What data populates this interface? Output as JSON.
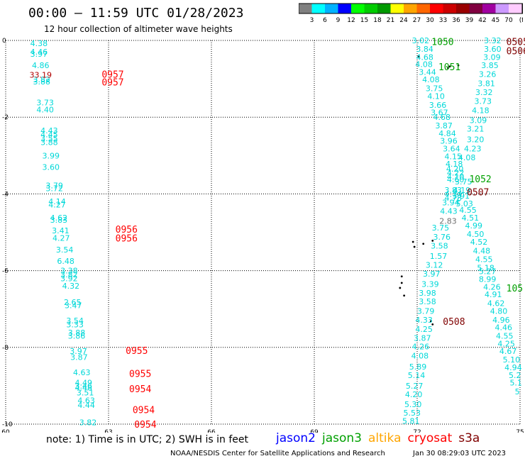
{
  "header": {
    "title": "00:00 – 11:59 UTC 01/28/2023",
    "subtitle": "12 hour collection of altimeter wave heights"
  },
  "colorbar": {
    "colors": [
      "#808080",
      "#00ffff",
      "#00b2ff",
      "#0000ff",
      "#00ff00",
      "#00cc00",
      "#009900",
      "#ffff00",
      "#ffa500",
      "#ff6600",
      "#ff0000",
      "#cc0000",
      "#990000",
      "#800040",
      "#a000a0",
      "#cc99ff",
      "#ffccff",
      "#000000"
    ],
    "labels": [
      "3",
      "6",
      "9",
      "12",
      "15",
      "18",
      "21",
      "24",
      "27",
      "30",
      "33",
      "36",
      "39",
      "42",
      "45",
      "70",
      "(ft)"
    ]
  },
  "axes": {
    "x_ticks": [
      "60",
      "63",
      "66",
      "69",
      "72",
      "75"
    ],
    "y_ticks": [
      "0",
      "-2",
      "-4",
      "-6",
      "-8",
      "-10"
    ]
  },
  "tracks": [
    {
      "color": "#00d8d8",
      "points": [
        {
          "x": 60.97,
          "y": -0.07,
          "v": "4.38"
        },
        {
          "x": 60.97,
          "y": -0.3,
          "v": "4.46"
        },
        {
          "x": 60.97,
          "y": -0.35,
          "v": "3.97"
        },
        {
          "x": 61.02,
          "y": -0.65,
          "v": "4.86"
        },
        {
          "x": 61.05,
          "y": -1.02,
          "v": "3.82"
        },
        {
          "x": 61.05,
          "y": -1.07,
          "v": "3.88"
        },
        {
          "x": 61.15,
          "y": -1.62,
          "v": "3.73"
        },
        {
          "x": 61.15,
          "y": -1.8,
          "v": "4.40"
        },
        {
          "x": 61.27,
          "y": -2.35,
          "v": "4.43"
        },
        {
          "x": 61.27,
          "y": -2.45,
          "v": "4.45"
        },
        {
          "x": 61.27,
          "y": -2.55,
          "v": "3.55"
        },
        {
          "x": 61.27,
          "y": -2.65,
          "v": "3.88"
        },
        {
          "x": 61.32,
          "y": -3.0,
          "v": "3.99"
        },
        {
          "x": 61.32,
          "y": -3.3,
          "v": "3.60"
        },
        {
          "x": 61.42,
          "y": -3.78,
          "v": "3.79"
        },
        {
          "x": 61.42,
          "y": -3.85,
          "v": "3.72"
        },
        {
          "x": 61.5,
          "y": -4.2,
          "v": "4.14"
        },
        {
          "x": 61.5,
          "y": -4.28,
          "v": "4.27"
        },
        {
          "x": 61.55,
          "y": -4.62,
          "v": "4.62"
        },
        {
          "x": 61.55,
          "y": -4.68,
          "v": "3.83"
        },
        {
          "x": 61.6,
          "y": -4.95,
          "v": "3.41"
        },
        {
          "x": 61.62,
          "y": -5.15,
          "v": "4.27"
        },
        {
          "x": 61.72,
          "y": -5.45,
          "v": "3.54"
        },
        {
          "x": 61.75,
          "y": -5.75,
          "v": "6.48"
        },
        {
          "x": 61.85,
          "y": -6.0,
          "v": "3.38"
        },
        {
          "x": 61.85,
          "y": -6.1,
          "v": "3.82"
        },
        {
          "x": 61.85,
          "y": -6.2,
          "v": "3.92"
        },
        {
          "x": 61.9,
          "y": -6.4,
          "v": "4.32"
        },
        {
          "x": 61.95,
          "y": -6.82,
          "v": "2.65"
        },
        {
          "x": 61.97,
          "y": -6.9,
          "v": "3.47"
        },
        {
          "x": 62.02,
          "y": -7.3,
          "v": "3.54"
        },
        {
          "x": 62.02,
          "y": -7.4,
          "v": "3.33"
        },
        {
          "x": 62.07,
          "y": -7.62,
          "v": "3.88"
        },
        {
          "x": 62.07,
          "y": -7.7,
          "v": "3.86"
        },
        {
          "x": 62.12,
          "y": -8.1,
          "v": "3.97"
        },
        {
          "x": 62.14,
          "y": -8.25,
          "v": "3.87"
        },
        {
          "x": 62.22,
          "y": -8.65,
          "v": "4.63"
        },
        {
          "x": 62.27,
          "y": -8.92,
          "v": "4.49"
        },
        {
          "x": 62.27,
          "y": -9.0,
          "v": "3.46"
        },
        {
          "x": 62.27,
          "y": -9.05,
          "v": "4.48"
        },
        {
          "x": 62.32,
          "y": -9.18,
          "v": "3.51"
        },
        {
          "x": 62.35,
          "y": -9.38,
          "v": "4.63"
        },
        {
          "x": 62.35,
          "y": -9.5,
          "v": "4.44"
        },
        {
          "x": 62.4,
          "y": -9.95,
          "v": "3.82"
        }
      ]
    },
    {
      "color": "#b00000",
      "points": [
        {
          "x": 61.02,
          "y": -0.9,
          "v": "33.19"
        }
      ]
    },
    {
      "color": "#00d8d8",
      "points": [
        {
          "x": 72.1,
          "y": 0.0,
          "v": "3.02"
        },
        {
          "x": 72.22,
          "y": -0.22,
          "v": "3.84"
        },
        {
          "x": 72.22,
          "y": -0.43,
          "v": "4.68"
        },
        {
          "x": 72.2,
          "y": -0.62,
          "v": "4.08"
        },
        {
          "x": 72.3,
          "y": -0.82,
          "v": "3.44"
        },
        {
          "x": 72.4,
          "y": -1.02,
          "v": "4.08"
        },
        {
          "x": 72.5,
          "y": -1.25,
          "v": "3.75"
        },
        {
          "x": 72.55,
          "y": -1.45,
          "v": "4.10"
        },
        {
          "x": 72.6,
          "y": -1.68,
          "v": "3.66"
        },
        {
          "x": 72.65,
          "y": -1.88,
          "v": "3.67"
        },
        {
          "x": 72.72,
          "y": -2.0,
          "v": "4.68"
        },
        {
          "x": 72.78,
          "y": -2.22,
          "v": "3.87"
        },
        {
          "x": 72.88,
          "y": -2.42,
          "v": "4.84"
        },
        {
          "x": 72.92,
          "y": -2.62,
          "v": "3.96"
        },
        {
          "x": 73.0,
          "y": -2.82,
          "v": "3.64"
        },
        {
          "x": 73.05,
          "y": -3.02,
          "v": "4.15"
        },
        {
          "x": 73.08,
          "y": -3.22,
          "v": "4.18"
        },
        {
          "x": 73.1,
          "y": -3.35,
          "v": "4.20"
        },
        {
          "x": 73.12,
          "y": -3.45,
          "v": "4.22"
        },
        {
          "x": 73.12,
          "y": -3.55,
          "v": "4.10"
        },
        {
          "x": 73.12,
          "y": -3.62,
          "v": "4.60"
        },
        {
          "x": 73.05,
          "y": -3.9,
          "v": "3.83"
        },
        {
          "x": 73.05,
          "y": -4.0,
          "v": "4.74"
        },
        {
          "x": 73.05,
          "y": -4.1,
          "v": "4.78"
        },
        {
          "x": 72.98,
          "y": -4.22,
          "v": "3.94"
        },
        {
          "x": 72.92,
          "y": -4.45,
          "v": "4.43"
        },
        {
          "x": 72.68,
          "y": -4.88,
          "v": "3.75"
        },
        {
          "x": 72.72,
          "y": -5.12,
          "v": "3.76"
        },
        {
          "x": 72.65,
          "y": -5.35,
          "v": "3.58"
        },
        {
          "x": 72.62,
          "y": -5.62,
          "v": "1.57"
        },
        {
          "x": 72.5,
          "y": -5.85,
          "v": "3.12"
        },
        {
          "x": 72.42,
          "y": -6.08,
          "v": "3.97"
        },
        {
          "x": 72.38,
          "y": -6.35,
          "v": "3.39"
        },
        {
          "x": 72.3,
          "y": -6.58,
          "v": "3.98"
        },
        {
          "x": 72.3,
          "y": -6.8,
          "v": "3.58"
        },
        {
          "x": 72.25,
          "y": -7.05,
          "v": "3.79"
        },
        {
          "x": 72.2,
          "y": -7.28,
          "v": "4.33"
        },
        {
          "x": 72.2,
          "y": -7.52,
          "v": "4.25"
        },
        {
          "x": 72.15,
          "y": -7.75,
          "v": "3.87"
        },
        {
          "x": 72.1,
          "y": -7.98,
          "v": "4.26"
        },
        {
          "x": 72.08,
          "y": -8.22,
          "v": "4.08"
        },
        {
          "x": 72.02,
          "y": -8.5,
          "v": "5.89"
        },
        {
          "x": 71.98,
          "y": -8.72,
          "v": "5.14"
        },
        {
          "x": 71.92,
          "y": -9.0,
          "v": "5.27"
        },
        {
          "x": 71.9,
          "y": -9.22,
          "v": "4.20"
        },
        {
          "x": 71.88,
          "y": -9.48,
          "v": "5.30"
        },
        {
          "x": 71.85,
          "y": -9.7,
          "v": "5.53"
        },
        {
          "x": 71.82,
          "y": -9.92,
          "v": "5.81"
        }
      ]
    },
    {
      "color": "#707070",
      "points": [
        {
          "x": 72.9,
          "y": -4.7,
          "v": "2.83"
        }
      ]
    },
    {
      "color": "#00d8d8",
      "points": [
        {
          "x": 74.2,
          "y": 0.0,
          "v": "3.32"
        },
        {
          "x": 74.2,
          "y": -0.22,
          "v": "3.60"
        },
        {
          "x": 74.18,
          "y": -0.43,
          "v": "3.09"
        },
        {
          "x": 74.12,
          "y": -0.65,
          "v": "3.85"
        },
        {
          "x": 74.05,
          "y": -0.88,
          "v": "3.26"
        },
        {
          "x": 74.02,
          "y": -1.12,
          "v": "3.81"
        },
        {
          "x": 73.95,
          "y": -1.35,
          "v": "3.32"
        },
        {
          "x": 73.92,
          "y": -1.58,
          "v": "3.73"
        },
        {
          "x": 73.85,
          "y": -1.82,
          "v": "4.18"
        },
        {
          "x": 73.78,
          "y": -2.08,
          "v": "3.09"
        },
        {
          "x": 73.7,
          "y": -2.3,
          "v": "3.21"
        },
        {
          "x": 73.7,
          "y": -2.58,
          "v": "3.20"
        },
        {
          "x": 73.62,
          "y": -2.82,
          "v": "4.23"
        },
        {
          "x": 73.45,
          "y": -3.05,
          "v": "4.08"
        },
        {
          "x": 73.35,
          "y": -3.68,
          "v": "3.75"
        },
        {
          "x": 73.3,
          "y": -3.9,
          "v": "4.19"
        },
        {
          "x": 73.28,
          "y": -4.05,
          "v": "3.91"
        },
        {
          "x": 73.38,
          "y": -4.25,
          "v": "5.03"
        },
        {
          "x": 73.48,
          "y": -4.42,
          "v": "4.55"
        },
        {
          "x": 73.55,
          "y": -4.62,
          "v": "4.51"
        },
        {
          "x": 73.65,
          "y": -4.82,
          "v": "4.99"
        },
        {
          "x": 73.7,
          "y": -5.05,
          "v": "4.50"
        },
        {
          "x": 73.8,
          "y": -5.25,
          "v": "4.52"
        },
        {
          "x": 73.88,
          "y": -5.48,
          "v": "4.48"
        },
        {
          "x": 73.95,
          "y": -5.7,
          "v": "4.55"
        },
        {
          "x": 74.0,
          "y": -5.92,
          "v": "5.18"
        },
        {
          "x": 74.05,
          "y": -6.02,
          "v": "5.27"
        },
        {
          "x": 74.05,
          "y": -6.22,
          "v": "8.99"
        },
        {
          "x": 74.18,
          "y": -6.42,
          "v": "4.26"
        },
        {
          "x": 74.22,
          "y": -6.62,
          "v": "4.91"
        },
        {
          "x": 74.3,
          "y": -6.85,
          "v": "4.62"
        },
        {
          "x": 74.38,
          "y": -7.05,
          "v": "4.80"
        },
        {
          "x": 74.45,
          "y": -7.28,
          "v": "4.96"
        },
        {
          "x": 74.52,
          "y": -7.48,
          "v": "4.46"
        },
        {
          "x": 74.55,
          "y": -7.7,
          "v": "4.55"
        },
        {
          "x": 74.6,
          "y": -7.9,
          "v": "4.25"
        },
        {
          "x": 74.65,
          "y": -8.1,
          "v": "4.67"
        },
        {
          "x": 74.75,
          "y": -8.32,
          "v": "5.10"
        },
        {
          "x": 74.8,
          "y": -8.52,
          "v": "4.94"
        },
        {
          "x": 74.85,
          "y": -8.72,
          "v": "5.2"
        },
        {
          "x": 74.88,
          "y": -8.92,
          "v": "5.1"
        },
        {
          "x": 74.92,
          "y": -9.15,
          "v": "5"
        }
      ]
    }
  ],
  "pass_labels": [
    {
      "label": "0957",
      "color": "#ff0000",
      "x": 62.8,
      "y": -0.88
    },
    {
      "label": "0957",
      "color": "#ff0000",
      "x": 62.8,
      "y": -1.08
    },
    {
      "label": "0956",
      "color": "#ff0000",
      "x": 63.2,
      "y": -4.92
    },
    {
      "label": "0956",
      "color": "#ff0000",
      "x": 63.2,
      "y": -5.15
    },
    {
      "label": "0955",
      "color": "#ff0000",
      "x": 63.5,
      "y": -8.08
    },
    {
      "label": "0955",
      "color": "#ff0000",
      "x": 63.6,
      "y": -8.68
    },
    {
      "label": "0954",
      "color": "#ff0000",
      "x": 63.6,
      "y": -9.08
    },
    {
      "label": "0954",
      "color": "#ff0000",
      "x": 63.7,
      "y": -9.62
    },
    {
      "label": "0954",
      "color": "#ff0000",
      "x": 63.75,
      "y": -10.0
    },
    {
      "label": "1050",
      "color": "#00a000",
      "x": 72.42,
      "y": -0.03
    },
    {
      "label": "1051",
      "color": "#00a000",
      "x": 72.62,
      "y": -0.68
    },
    {
      "label": "1052",
      "color": "#00a000",
      "x": 73.52,
      "y": -3.6
    },
    {
      "label": "105",
      "color": "#00a000",
      "x": 74.6,
      "y": -6.45
    },
    {
      "label": "0505",
      "color": "#800000",
      "x": 74.6,
      "y": -0.03
    },
    {
      "label": "0506",
      "color": "#800000",
      "x": 74.6,
      "y": -0.27
    },
    {
      "label": "0507",
      "color": "#800000",
      "x": 73.45,
      "y": -3.95
    },
    {
      "label": "0508",
      "color": "#800000",
      "x": 72.75,
      "y": -7.32
    }
  ],
  "land": [
    {
      "name": "island-1",
      "x": 72.05,
      "y": -0.42
    },
    {
      "name": "island-2",
      "x": 73.2,
      "y": -0.65
    },
    {
      "name": "island-3",
      "x": 72.95,
      "y": -0.68
    },
    {
      "name": "island-4",
      "x": 72.9,
      "y": -0.72
    },
    {
      "name": "island-5",
      "x": 71.88,
      "y": -5.25
    },
    {
      "name": "island-6",
      "x": 71.92,
      "y": -5.38
    },
    {
      "name": "island-7",
      "x": 72.18,
      "y": -5.3
    },
    {
      "name": "island-8",
      "x": 72.45,
      "y": -5.22
    },
    {
      "name": "island-9",
      "x": 71.55,
      "y": -6.15
    },
    {
      "name": "island-10",
      "x": 71.55,
      "y": -6.32
    },
    {
      "name": "island-11",
      "x": 71.5,
      "y": -6.45
    },
    {
      "name": "island-12",
      "x": 71.62,
      "y": -6.65
    },
    {
      "name": "island-13",
      "x": 72.4,
      "y": -7.32
    },
    {
      "name": "island-14",
      "x": 72.45,
      "y": -7.4
    }
  ],
  "note": "note: 1) Time is in UTC; 2) SWH is in feet",
  "satellites": [
    {
      "name": "jason2",
      "color": "#0000ff"
    },
    {
      "name": "jason3",
      "color": "#00a000"
    },
    {
      "name": "altika",
      "color": "#ffa500"
    },
    {
      "name": "cryosat",
      "color": "#ff0000"
    },
    {
      "name": "s3a",
      "color": "#800000"
    }
  ],
  "footer": {
    "credit": "NOAA/NESDIS Center for Satellite Applications and Research",
    "date": "Jan 30 08:29:03 UTC 2023"
  }
}
